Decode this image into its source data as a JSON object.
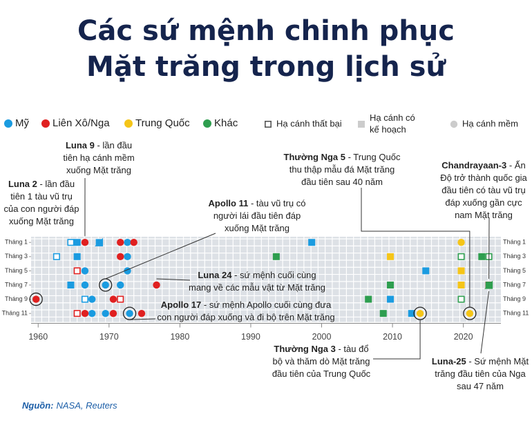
{
  "chart_data": {
    "type": "timeline-scatter",
    "title_lines": [
      "Các sứ mệnh chinh phục",
      "Mặt trăng trong lịch sử"
    ],
    "xlim": [
      1959,
      2025.3
    ],
    "xticks": [
      1960,
      1970,
      1980,
      1990,
      2000,
      2010,
      2020
    ],
    "ylim": [
      0.2,
      12.2
    ],
    "y_inverted": true,
    "yticks": [
      {
        "value": 1,
        "label": "Tháng 1"
      },
      {
        "value": 3,
        "label": "Tháng 3"
      },
      {
        "value": 5,
        "label": "Tháng 5"
      },
      {
        "value": 7,
        "label": "Tháng 7"
      },
      {
        "value": 9,
        "label": "Tháng 9"
      },
      {
        "value": 11,
        "label": "Tháng 11"
      }
    ],
    "marker_legend": [
      {
        "lines": [
          "Hạ cánh thất bại"
        ],
        "shape": "open-square",
        "color": "#555555"
      },
      {
        "lines": [
          "Hạ cánh có",
          "kế hoạch"
        ],
        "shape": "square",
        "color": "#cccccc"
      },
      {
        "lines": [
          "Hạ cánh mềm"
        ],
        "shape": "circle",
        "color": "#cccccc"
      }
    ],
    "series": [
      {
        "name": "Mỹ",
        "color": "#1a9be0",
        "x": [
          1964.6,
          1965.5,
          1968.6,
          1972.6,
          1998.6,
          1962.6,
          1965.5,
          1972.6,
          1966.6,
          1972.6,
          2014.7,
          1964.6,
          1966.6,
          1969.5,
          1971.6,
          1966.6,
          1967.6,
          2009.7,
          1967.6,
          1969.5,
          1972.9,
          2012.7
        ],
        "values": [
          1,
          1,
          1,
          1,
          1,
          3,
          3,
          3,
          5,
          5,
          5,
          7,
          7,
          7,
          7,
          9,
          9,
          9,
          11,
          11,
          11,
          11
        ],
        "markers": [
          "open-square",
          "square",
          "half-square",
          "circle",
          "square",
          "open-square",
          "square",
          "circle",
          "circle",
          "circle",
          "square",
          "square",
          "circle",
          "circle",
          "circle",
          "open-square",
          "circle",
          "square",
          "circle",
          "circle",
          "circle",
          "square"
        ]
      },
      {
        "name": "Liên Xô/Nga",
        "color": "#e02020",
        "x": [
          1966.6,
          1971.6,
          1973.5,
          1971.6,
          1965.5,
          1976.7,
          1959.7,
          1970.6,
          1971.6,
          1965.5,
          1966.6,
          1970.6,
          1974.6,
          2023.6
        ],
        "values": [
          1,
          1,
          1,
          3,
          5,
          7,
          9,
          9,
          9,
          11,
          11,
          11,
          11,
          7
        ],
        "markers": [
          "circle",
          "circle",
          "circle",
          "circle",
          "open-square",
          "circle",
          "circle",
          "circle",
          "open-square",
          "open-square",
          "circle",
          "circle",
          "circle",
          "open-square"
        ]
      },
      {
        "name": "Trung Quốc",
        "color": "#f5c518",
        "x": [
          2019.7,
          2009.7,
          2019.7,
          2019.7,
          2013.9,
          2020.9
        ],
        "values": [
          1,
          3,
          5,
          7,
          11,
          11
        ],
        "markers": [
          "circle",
          "square",
          "square",
          "square",
          "circle",
          "circle"
        ]
      },
      {
        "name": "Khác",
        "color": "#2e9e4f",
        "x": [
          1993.6,
          2019.7,
          2022.6,
          2023.6,
          2009.7,
          2006.6,
          2019.7,
          2008.7,
          2023.6
        ],
        "values": [
          3,
          3,
          3,
          3,
          7,
          9,
          9,
          11,
          7
        ],
        "markers": [
          "square",
          "open-square",
          "square",
          "open-square",
          "square",
          "square",
          "open-square",
          "square",
          "half-square"
        ]
      }
    ],
    "annotations": [
      {
        "title": "Luna 9",
        "lines": [
          " - lần đầu",
          "tiên hạ cánh mềm",
          "xuống Mặt trăng"
        ]
      },
      {
        "title": "Luna 2",
        "lines": [
          " - lần đầu",
          "tiên 1 tàu vũ trụ",
          "của con người đáp",
          "xuống Mặt trăng"
        ]
      },
      {
        "title": "Apollo 11",
        "lines": [
          " - tàu vũ trụ có",
          "người lái đầu tiên đáp",
          "xuống Mặt trăng"
        ]
      },
      {
        "title": "Luna 24",
        "lines": [
          " - sứ mệnh cuối cùng",
          "mang về các mẫu vật từ Mặt trăng"
        ]
      },
      {
        "title": "Apollo 17",
        "lines": [
          " - sứ mệnh Apollo cuối cùng đưa",
          "con người đáp xuống và đi bộ trên Mặt trăng"
        ]
      },
      {
        "title": "Thường Nga 5",
        "lines": [
          " - Trung Quốc",
          "thu thập mẫu đá Mặt trăng",
          "đầu tiên sau 40 năm"
        ]
      },
      {
        "title": "Chandrayaan-3",
        "lines": [
          " - Ấn",
          "Độ trở thành quốc gia",
          "đầu tiên có tàu vũ trụ",
          "đáp xuống gần cực",
          "nam Mặt trăng"
        ]
      },
      {
        "title": "Thường Nga 3",
        "lines": [
          " - tàu đổ",
          "bộ và thăm dò Mặt trăng",
          "đầu tiên của Trung Quốc"
        ]
      },
      {
        "title": "Luna-25",
        "lines": [
          " - Sứ mệnh Mặt",
          "trăng đầu tiên của Nga",
          "sau 47 năm"
        ]
      }
    ],
    "source": {
      "label": "Nguồn:",
      "text": "NASA, Reuters"
    }
  }
}
